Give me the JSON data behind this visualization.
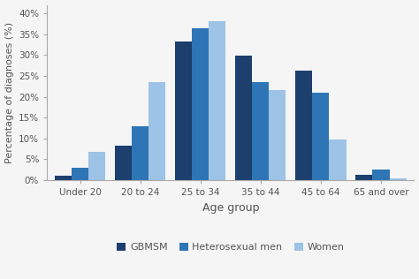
{
  "categories": [
    "Under 20",
    "20 to 24",
    "25 to 34",
    "35 to 44",
    "45 to 64",
    "65 and over"
  ],
  "series": {
    "GBMSM": [
      1.0,
      8.2,
      33.3,
      29.8,
      26.2,
      1.2
    ],
    "Heterosexual men": [
      3.0,
      13.0,
      36.5,
      23.5,
      21.0,
      2.5
    ],
    "Women": [
      6.8,
      23.5,
      38.0,
      21.7,
      9.7,
      0.5
    ]
  },
  "colors": {
    "GBMSM": "#1c3f6e",
    "Heterosexual men": "#2e75b6",
    "Women": "#9dc3e6"
  },
  "ylabel": "Percentage of diagnoses (%)",
  "xlabel": "Age group",
  "ylim": [
    0,
    42
  ],
  "yticks": [
    0,
    5,
    10,
    15,
    20,
    25,
    30,
    35,
    40
  ],
  "ytick_labels": [
    "0%",
    "5%",
    "10%",
    "15%",
    "20%",
    "25%",
    "30%",
    "35%",
    "40%"
  ],
  "legend_order": [
    "GBMSM",
    "Heterosexual men",
    "Women"
  ],
  "bar_width": 0.28,
  "group_width": 1.0,
  "spine_color": "#aaaaaa",
  "tick_label_color": "#555555",
  "background_color": "#f5f5f5",
  "ylabel_fontsize": 8,
  "xlabel_fontsize": 9,
  "tick_fontsize": 7.5,
  "legend_fontsize": 8
}
